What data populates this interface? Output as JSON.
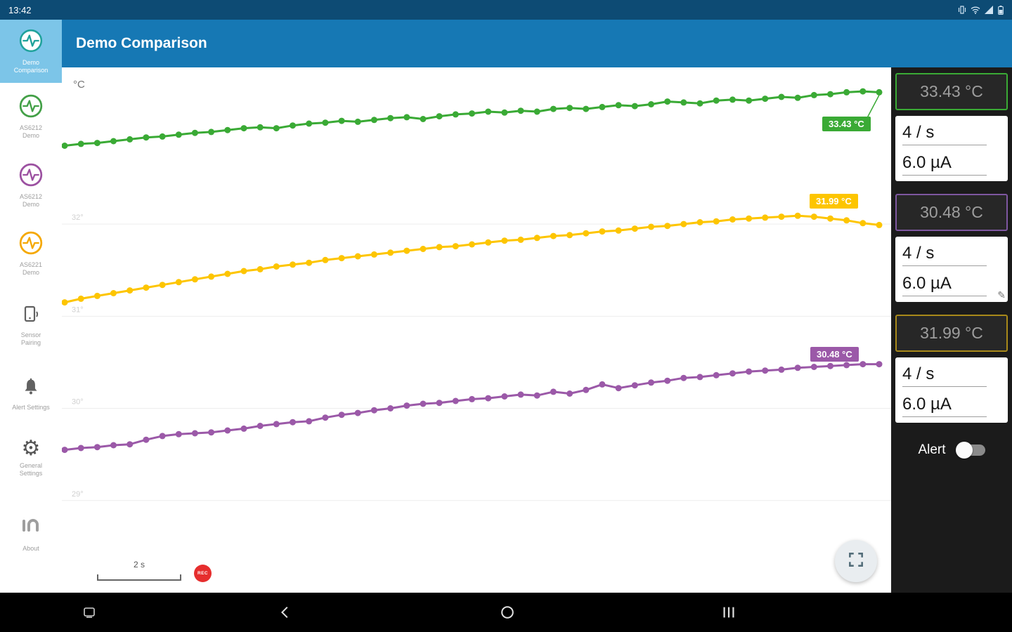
{
  "status_bar": {
    "time": "13:42",
    "icons": [
      "vibrate-icon",
      "wifi-icon",
      "cellular-icon",
      "battery-icon"
    ]
  },
  "app_bar": {
    "title": "Demo Comparison"
  },
  "sidebar": {
    "items": [
      {
        "label": "Demo\nComparison",
        "accent": "#1fa29b",
        "selected": true
      },
      {
        "label": "AS6212\nDemo",
        "accent": "#43a047"
      },
      {
        "label": "AS6212\nDemo",
        "accent": "#9c51a1"
      },
      {
        "label": "AS6221\nDemo",
        "accent": "#f5a800"
      },
      {
        "label": "Sensor\nPairing",
        "accent": "#616161"
      },
      {
        "label": "Alert Settings",
        "accent": "#616161"
      },
      {
        "label": "General\nSettings",
        "accent": "#616161"
      },
      {
        "label": "About",
        "accent": "#9e9e9e"
      }
    ]
  },
  "chart_data": {
    "type": "line",
    "title": "",
    "ylabel": "°C",
    "x_unit": "s",
    "ylim": [
      28.0,
      33.7
    ],
    "yticks": [
      32,
      31,
      30,
      29
    ],
    "grid": true,
    "legend": "none",
    "annotations": {
      "unit_label": "°C",
      "scale_label": "2 s",
      "rec_label": "REC"
    },
    "series": [
      {
        "name": "AS6212 Demo green",
        "color": "#3aaa35",
        "last_value_label": "33.43 °C",
        "values": [
          32.85,
          32.87,
          32.88,
          32.9,
          32.92,
          32.94,
          32.95,
          32.97,
          32.99,
          33.0,
          33.02,
          33.04,
          33.05,
          33.04,
          33.07,
          33.09,
          33.1,
          33.12,
          33.11,
          33.13,
          33.15,
          33.16,
          33.14,
          33.17,
          33.19,
          33.2,
          33.22,
          33.21,
          33.23,
          33.22,
          33.25,
          33.26,
          33.25,
          33.27,
          33.29,
          33.28,
          33.3,
          33.33,
          33.32,
          33.31,
          33.34,
          33.35,
          33.34,
          33.36,
          33.38,
          33.37,
          33.4,
          33.41,
          33.43,
          33.44,
          33.43
        ]
      },
      {
        "name": "AS6221 Demo yellow",
        "color": "#fdc500",
        "last_value_label": "31.99 °C",
        "values": [
          31.15,
          31.19,
          31.22,
          31.25,
          31.28,
          31.31,
          31.34,
          31.37,
          31.4,
          31.43,
          31.46,
          31.49,
          31.51,
          31.54,
          31.56,
          31.58,
          31.61,
          31.63,
          31.65,
          31.67,
          31.69,
          31.71,
          31.73,
          31.75,
          31.76,
          31.78,
          31.8,
          31.82,
          31.83,
          31.85,
          31.87,
          31.88,
          31.9,
          31.92,
          31.93,
          31.95,
          31.97,
          31.98,
          32.0,
          32.02,
          32.03,
          32.05,
          32.06,
          32.07,
          32.08,
          32.09,
          32.08,
          32.06,
          32.04,
          32.01,
          31.99
        ]
      },
      {
        "name": "AS6212 Demo purple",
        "color": "#9b59a8",
        "last_value_label": "30.48 °C",
        "values": [
          29.55,
          29.57,
          29.58,
          29.6,
          29.61,
          29.66,
          29.7,
          29.72,
          29.73,
          29.74,
          29.76,
          29.78,
          29.81,
          29.83,
          29.85,
          29.86,
          29.9,
          29.93,
          29.95,
          29.98,
          30.0,
          30.03,
          30.05,
          30.06,
          30.08,
          30.1,
          30.11,
          30.13,
          30.15,
          30.14,
          30.18,
          30.16,
          30.2,
          30.26,
          30.22,
          30.25,
          30.28,
          30.3,
          30.33,
          30.34,
          30.36,
          30.38,
          30.4,
          30.41,
          30.42,
          30.44,
          30.45,
          30.46,
          30.47,
          30.48,
          30.48
        ]
      }
    ]
  },
  "right_panel": {
    "alert_label": "Alert",
    "cards": [
      {
        "kind": "temp",
        "value": "33.43 °C",
        "accent": "#3aaa35"
      },
      {
        "kind": "rate",
        "rate": "4 / s",
        "current": "6.0 µA"
      },
      {
        "kind": "temp",
        "value": "30.48 °C",
        "accent": "#7e57a0"
      },
      {
        "kind": "rate",
        "rate": "4 / s",
        "current": "6.0 µA"
      },
      {
        "kind": "temp",
        "value": "31.99 °C",
        "accent": "#a8891a"
      },
      {
        "kind": "rate",
        "rate": "4 / s",
        "current": "6.0 µA"
      }
    ]
  },
  "bottom_nav": {
    "icons": [
      "capture-icon",
      "back-icon",
      "home-icon",
      "recents-icon"
    ]
  }
}
